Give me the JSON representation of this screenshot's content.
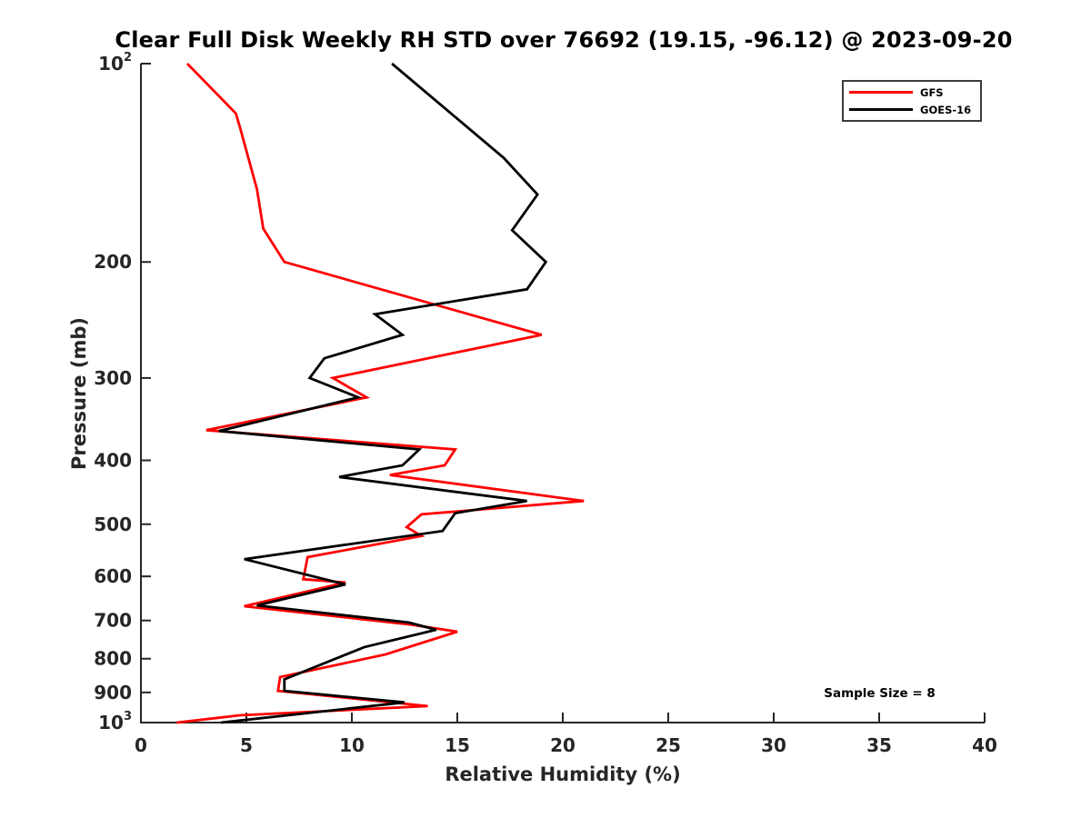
{
  "colors": {
    "background": "#ffffff",
    "axis": "#262626",
    "title": "#000000",
    "gfs_line": "#ff0000",
    "goes16_line": "#000000",
    "legend_border": "#3c3c3c"
  },
  "annotation": {
    "sample_size_text": "Sample Size = 8"
  },
  "chart_data": {
    "type": "line",
    "title": "Clear Full Disk Weekly RH STD over 76692 (19.15, -96.12) @ 2023-09-20",
    "xlabel": "Relative Humidity (%)",
    "ylabel": "Pressure (mb)",
    "x_axis": {
      "min": 0,
      "max": 40,
      "ticks": [
        0,
        5,
        10,
        15,
        20,
        25,
        30,
        35,
        40
      ]
    },
    "y_axis": {
      "scale": "log10",
      "inverted": true,
      "min_pressure_mb": 100,
      "max_pressure_mb": 1000,
      "ticks": [
        {
          "p": 100,
          "label": "10^2"
        },
        {
          "p": 200,
          "label": "200"
        },
        {
          "p": 300,
          "label": "300"
        },
        {
          "p": 400,
          "label": "400"
        },
        {
          "p": 500,
          "label": "500"
        },
        {
          "p": 600,
          "label": "600"
        },
        {
          "p": 700,
          "label": "700"
        },
        {
          "p": 800,
          "label": "800"
        },
        {
          "p": 900,
          "label": "900"
        },
        {
          "p": 1000,
          "label": "10^3"
        }
      ]
    },
    "grid": false,
    "legend": {
      "position": "top-right",
      "entries": [
        {
          "label": "GFS",
          "color": "#ff0000"
        },
        {
          "label": "GOES-16",
          "color": "#000000"
        }
      ]
    },
    "series": [
      {
        "name": "GFS",
        "color": "#ff0000",
        "points_rh_pressure": [
          [
            2.2,
            100
          ],
          [
            4.5,
            119
          ],
          [
            4.7,
            125
          ],
          [
            5.5,
            155
          ],
          [
            5.8,
            178
          ],
          [
            6.8,
            200
          ],
          [
            19.0,
            258
          ],
          [
            9.1,
            300
          ],
          [
            10.7,
            321
          ],
          [
            3.1,
            360
          ],
          [
            14.9,
            385
          ],
          [
            14.4,
            407
          ],
          [
            11.8,
            421
          ],
          [
            21.0,
            461
          ],
          [
            13.3,
            483
          ],
          [
            12.6,
            505
          ],
          [
            13.3,
            521
          ],
          [
            7.9,
            561
          ],
          [
            7.7,
            606
          ],
          [
            9.7,
            613
          ],
          [
            4.9,
            666
          ],
          [
            12.8,
            710
          ],
          [
            15.0,
            728
          ],
          [
            11.6,
            788
          ],
          [
            6.6,
            853
          ],
          [
            6.5,
            895
          ],
          [
            13.6,
            944
          ],
          [
            4.7,
            975
          ],
          [
            1.7,
            1000
          ]
        ]
      },
      {
        "name": "GOES-16",
        "color": "#000000",
        "points_rh_pressure": [
          [
            11.9,
            100
          ],
          [
            17.2,
            139
          ],
          [
            18.8,
            158
          ],
          [
            17.6,
            179
          ],
          [
            19.2,
            200
          ],
          [
            18.3,
            220
          ],
          [
            11.1,
            240
          ],
          [
            12.4,
            258
          ],
          [
            8.7,
            280
          ],
          [
            8.0,
            300
          ],
          [
            10.3,
            321
          ],
          [
            3.7,
            361
          ],
          [
            13.2,
            385
          ],
          [
            12.4,
            407
          ],
          [
            9.4,
            424
          ],
          [
            18.3,
            461
          ],
          [
            14.9,
            481
          ],
          [
            14.3,
            512
          ],
          [
            4.9,
            565
          ],
          [
            9.7,
            617
          ],
          [
            5.5,
            664
          ],
          [
            12.7,
            705
          ],
          [
            14.0,
            723
          ],
          [
            10.6,
            768
          ],
          [
            6.8,
            860
          ],
          [
            6.8,
            895
          ],
          [
            12.5,
            932
          ],
          [
            3.8,
            1000
          ]
        ]
      }
    ]
  }
}
